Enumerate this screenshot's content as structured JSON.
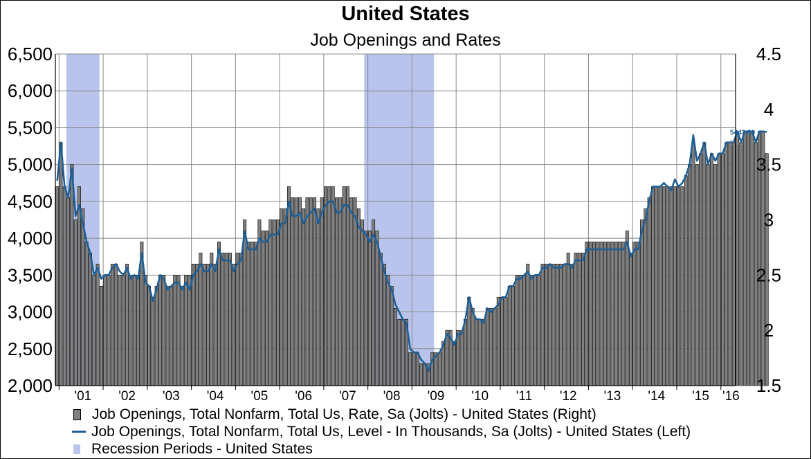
{
  "chart_data": {
    "type": "bar+line",
    "title": "United States",
    "subtitle": "Job Openings and Rates",
    "left_axis": {
      "ylim": [
        2000,
        6500
      ],
      "ticks": [
        "2,000",
        "2,500",
        "3,000",
        "3,500",
        "4,000",
        "4,500",
        "5,000",
        "5,500",
        "6,000",
        "6,500"
      ],
      "tick_values": [
        2000,
        2500,
        3000,
        3500,
        4000,
        4500,
        5000,
        5500,
        6000,
        6500
      ]
    },
    "right_axis": {
      "ylim": [
        1.5,
        4.5
      ],
      "ticks": [
        "1.5",
        "2",
        "2.5",
        "3",
        "3.5",
        "4",
        "4.5"
      ],
      "tick_values": [
        1.5,
        2,
        2.5,
        3,
        3.5,
        4,
        4.5
      ]
    },
    "x_axis": {
      "start": "2000-12",
      "end": "2016-04",
      "tick_labels": [
        "'01",
        "'02",
        "'03",
        "'04",
        "'05",
        "'06",
        "'07",
        "'08",
        "'09",
        "'10",
        "'11",
        "'12",
        "'13",
        "'14",
        "'15",
        "'16"
      ]
    },
    "grid": true,
    "recessions": [
      {
        "start": "2001-03",
        "end": "2001-11"
      },
      {
        "start": "2007-12",
        "end": "2009-06"
      }
    ],
    "series": [
      {
        "name": "Job Openings, Total Nonfarm, Total Us, Rate, Sa (Jolts) - United States  (Right)",
        "axis": "right",
        "kind": "bar",
        "color": "#808080",
        "end_value_label": "3.60",
        "start": "2000-12",
        "values": [
          3.3,
          3.7,
          3.3,
          3.2,
          3.5,
          3.0,
          3.3,
          3.1,
          2.8,
          2.7,
          2.5,
          2.6,
          2.4,
          2.5,
          2.5,
          2.6,
          2.6,
          2.5,
          2.5,
          2.6,
          2.5,
          2.5,
          2.5,
          2.8,
          2.5,
          2.4,
          2.3,
          2.4,
          2.5,
          2.5,
          2.4,
          2.4,
          2.5,
          2.5,
          2.4,
          2.5,
          2.5,
          2.6,
          2.6,
          2.7,
          2.6,
          2.6,
          2.7,
          2.6,
          2.8,
          2.7,
          2.7,
          2.7,
          2.6,
          2.7,
          2.7,
          3.0,
          2.8,
          2.8,
          2.8,
          3.0,
          2.9,
          2.9,
          3.0,
          3.0,
          3.0,
          3.1,
          3.1,
          3.3,
          3.2,
          3.2,
          3.2,
          3.1,
          3.2,
          3.2,
          3.2,
          3.1,
          3.2,
          3.3,
          3.3,
          3.3,
          3.2,
          3.2,
          3.3,
          3.3,
          3.2,
          3.2,
          3.1,
          3.0,
          2.9,
          2.9,
          3.0,
          2.9,
          2.7,
          2.6,
          2.5,
          2.4,
          2.2,
          2.1,
          2.1,
          2.1,
          1.8,
          1.8,
          1.8,
          1.7,
          1.7,
          1.7,
          1.8,
          1.8,
          1.8,
          1.9,
          2.0,
          2.0,
          1.9,
          2.0,
          2.0,
          2.1,
          2.3,
          2.2,
          2.1,
          2.1,
          2.1,
          2.2,
          2.2,
          2.2,
          2.3,
          2.3,
          2.3,
          2.4,
          2.4,
          2.5,
          2.5,
          2.5,
          2.6,
          2.5,
          2.5,
          2.5,
          2.6,
          2.6,
          2.6,
          2.6,
          2.6,
          2.6,
          2.6,
          2.7,
          2.6,
          2.7,
          2.7,
          2.7,
          2.8,
          2.8,
          2.8,
          2.8,
          2.8,
          2.8,
          2.8,
          2.8,
          2.8,
          2.8,
          2.8,
          2.9,
          2.7,
          2.8,
          2.8,
          3.0,
          3.1,
          3.2,
          3.3,
          3.3,
          3.3,
          3.3,
          3.3,
          3.3,
          3.3,
          3.3,
          3.3,
          3.4,
          3.5,
          3.7,
          3.5,
          3.6,
          3.7,
          3.5,
          3.6,
          3.5,
          3.6,
          3.6,
          3.7,
          3.7,
          3.7,
          3.8,
          3.7,
          3.8,
          3.8,
          3.8,
          3.7,
          3.8,
          3.8,
          3.6
        ]
      },
      {
        "name": "Job Openings, Total Nonfarm, Total Us, Level - In Thousands, Sa (Jolts) - United States  (Left)",
        "axis": "left",
        "kind": "line",
        "color": "#1f5f96",
        "end_value_label": "5443.00",
        "start": "2000-12",
        "values": [
          4780,
          5300,
          4700,
          4550,
          4950,
          4300,
          4450,
          4200,
          3950,
          3800,
          3500,
          3600,
          3450,
          3500,
          3500,
          3600,
          3650,
          3550,
          3500,
          3600,
          3450,
          3500,
          3450,
          3800,
          3400,
          3350,
          3150,
          3300,
          3500,
          3450,
          3300,
          3350,
          3400,
          3400,
          3300,
          3400,
          3300,
          3500,
          3550,
          3650,
          3550,
          3550,
          3650,
          3550,
          3850,
          3700,
          3700,
          3700,
          3550,
          3650,
          3700,
          4100,
          3850,
          3850,
          3850,
          4000,
          3950,
          3950,
          4050,
          4050,
          4050,
          4200,
          4200,
          4500,
          4300,
          4300,
          4350,
          4200,
          4300,
          4350,
          4400,
          4200,
          4350,
          4450,
          4500,
          4500,
          4350,
          4350,
          4450,
          4450,
          4350,
          4300,
          4150,
          4100,
          4050,
          3950,
          4050,
          3950,
          3750,
          3550,
          3400,
          3300,
          3100,
          3000,
          2900,
          2850,
          2500,
          2450,
          2450,
          2350,
          2300,
          2200,
          2350,
          2400,
          2450,
          2550,
          2700,
          2650,
          2550,
          2700,
          2700,
          2900,
          3200,
          3000,
          2900,
          2900,
          2850,
          3050,
          3000,
          3050,
          3100,
          3200,
          3200,
          3350,
          3350,
          3450,
          3450,
          3500,
          3550,
          3450,
          3500,
          3500,
          3600,
          3600,
          3650,
          3600,
          3600,
          3600,
          3650,
          3650,
          3600,
          3700,
          3700,
          3700,
          3850,
          3850,
          3850,
          3850,
          3850,
          3850,
          3850,
          3850,
          3850,
          3850,
          3850,
          3950,
          3750,
          3850,
          3850,
          4100,
          4250,
          4500,
          4700,
          4700,
          4700,
          4750,
          4700,
          4650,
          4800,
          4700,
          4750,
          4850,
          5000,
          5400,
          5050,
          5150,
          5300,
          5000,
          5150,
          5050,
          5150,
          5150,
          5300,
          5300,
          5300,
          5450,
          5300,
          5450,
          5450,
          5450,
          5300,
          5450,
          5450,
          5443
        ]
      },
      {
        "name": "Recession Periods - United States",
        "kind": "band",
        "color": "#b8c4ec"
      }
    ]
  },
  "legend": [
    {
      "label": "Job Openings, Total Nonfarm, Total Us, Rate, Sa (Jolts) - United States  (Right)"
    },
    {
      "label": "Job Openings, Total Nonfarm, Total Us, Level - In Thousands, Sa (Jolts) - United States  (Left)"
    },
    {
      "label": "Recession Periods - United States"
    }
  ]
}
